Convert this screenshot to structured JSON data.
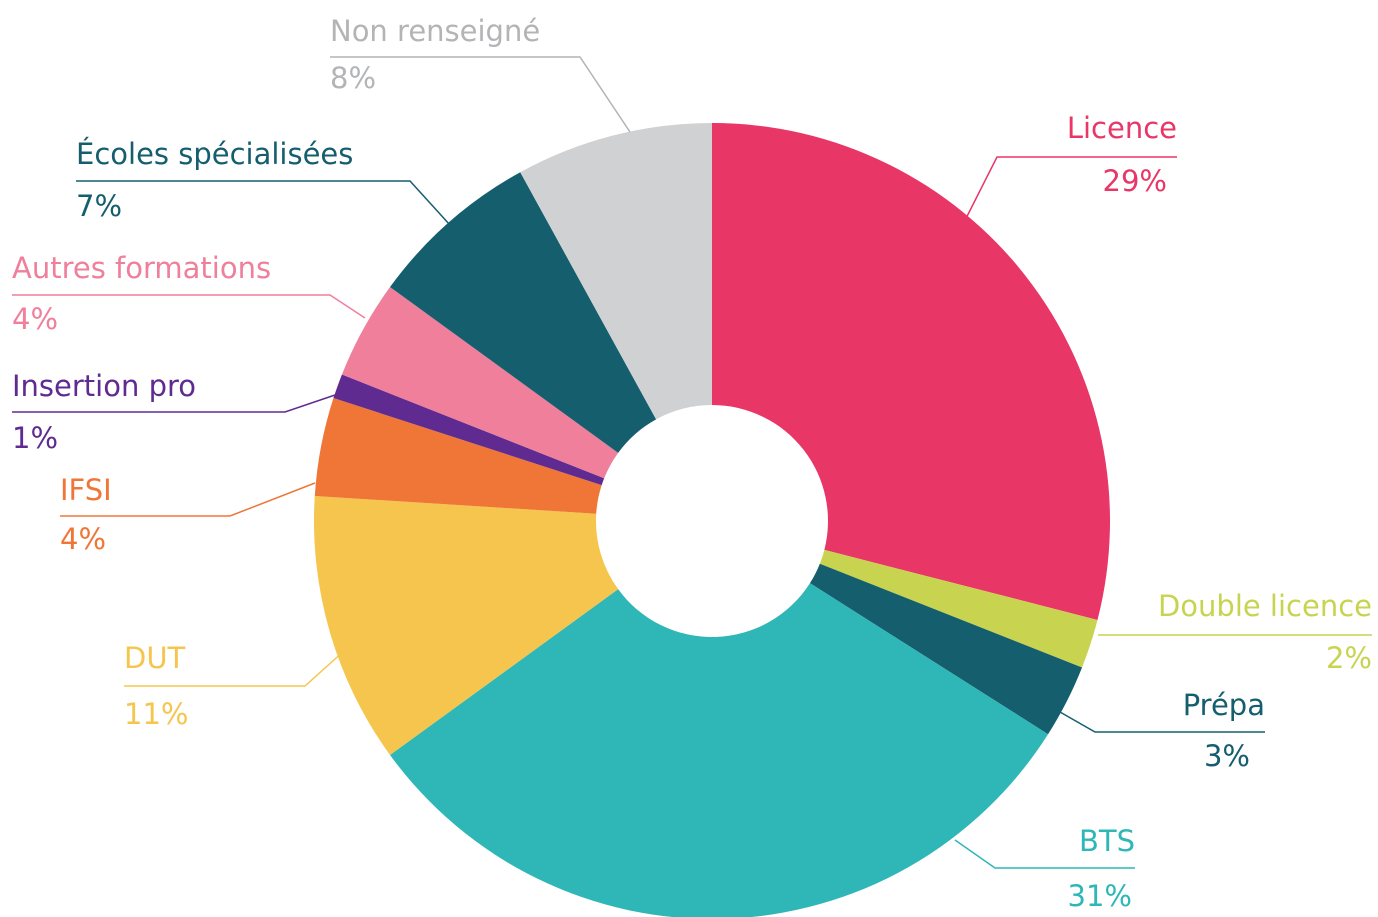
{
  "chart_data": {
    "type": "donut",
    "categories": [
      "Licence",
      "Double licence",
      "Prépa",
      "BTS",
      "DUT",
      "IFSI",
      "Insertion pro",
      "Autres formations",
      "Écoles spécialisées",
      "Non renseigné"
    ],
    "values": [
      29,
      2,
      3,
      31,
      11,
      4,
      1,
      4,
      7,
      8
    ],
    "value_labels": [
      "29%",
      "2%",
      "3%",
      "31%",
      "11%",
      "4%",
      "1%",
      "4%",
      "7%",
      "8%"
    ],
    "colors": [
      "#e83667",
      "#c8d450",
      "#155e6e",
      "#2fb7b7",
      "#f5c54e",
      "#ef7637",
      "#5f2b91",
      "#ef7f9b",
      "#155e6e",
      "#d0d1d3"
    ]
  }
}
